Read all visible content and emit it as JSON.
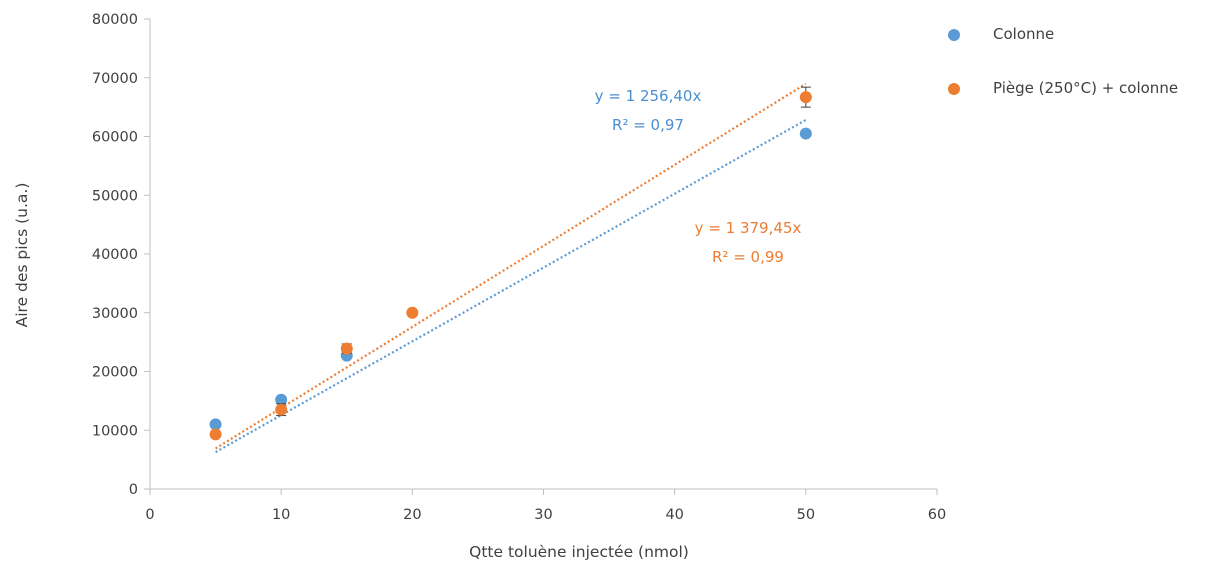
{
  "chart_data": {
    "type": "scatter",
    "xlabel": "Qtte toluène injectée (nmol)",
    "ylabel": "Aire des pics (u.a.)",
    "xlim": [
      0,
      60
    ],
    "ylim": [
      0,
      80000
    ],
    "x_ticks": [
      "0",
      "10",
      "20",
      "30",
      "40",
      "50",
      "60"
    ],
    "y_ticks": [
      "0",
      "10000",
      "20000",
      "30000",
      "40000",
      "50000",
      "60000",
      "70000",
      "80000"
    ],
    "grid": false,
    "legend_position": "right",
    "series": [
      {
        "name": "Colonne",
        "color": "#5b9bd5",
        "x": [
          5,
          10,
          15,
          50
        ],
        "y": [
          11000,
          15200,
          22700,
          60500
        ],
        "trendline": {
          "type": "linear-through-origin",
          "slope": 1256.4,
          "x_range": [
            5,
            50
          ],
          "equation": "y = 1 256,40x",
          "r2": "R² = 0,97"
        }
      },
      {
        "name": "Piège (250°C) + colonne",
        "color": "#ed7d31",
        "x": [
          5,
          10,
          15,
          20,
          50
        ],
        "y": [
          9300,
          13500,
          23900,
          30000,
          66700
        ],
        "error": [
          400,
          1000,
          800,
          400,
          1700
        ],
        "trendline": {
          "type": "linear-through-origin",
          "slope": 1379.45,
          "x_range": [
            5,
            50
          ],
          "equation": "y = 1 379,45x",
          "r2": "R² = 0,99"
        }
      }
    ]
  }
}
